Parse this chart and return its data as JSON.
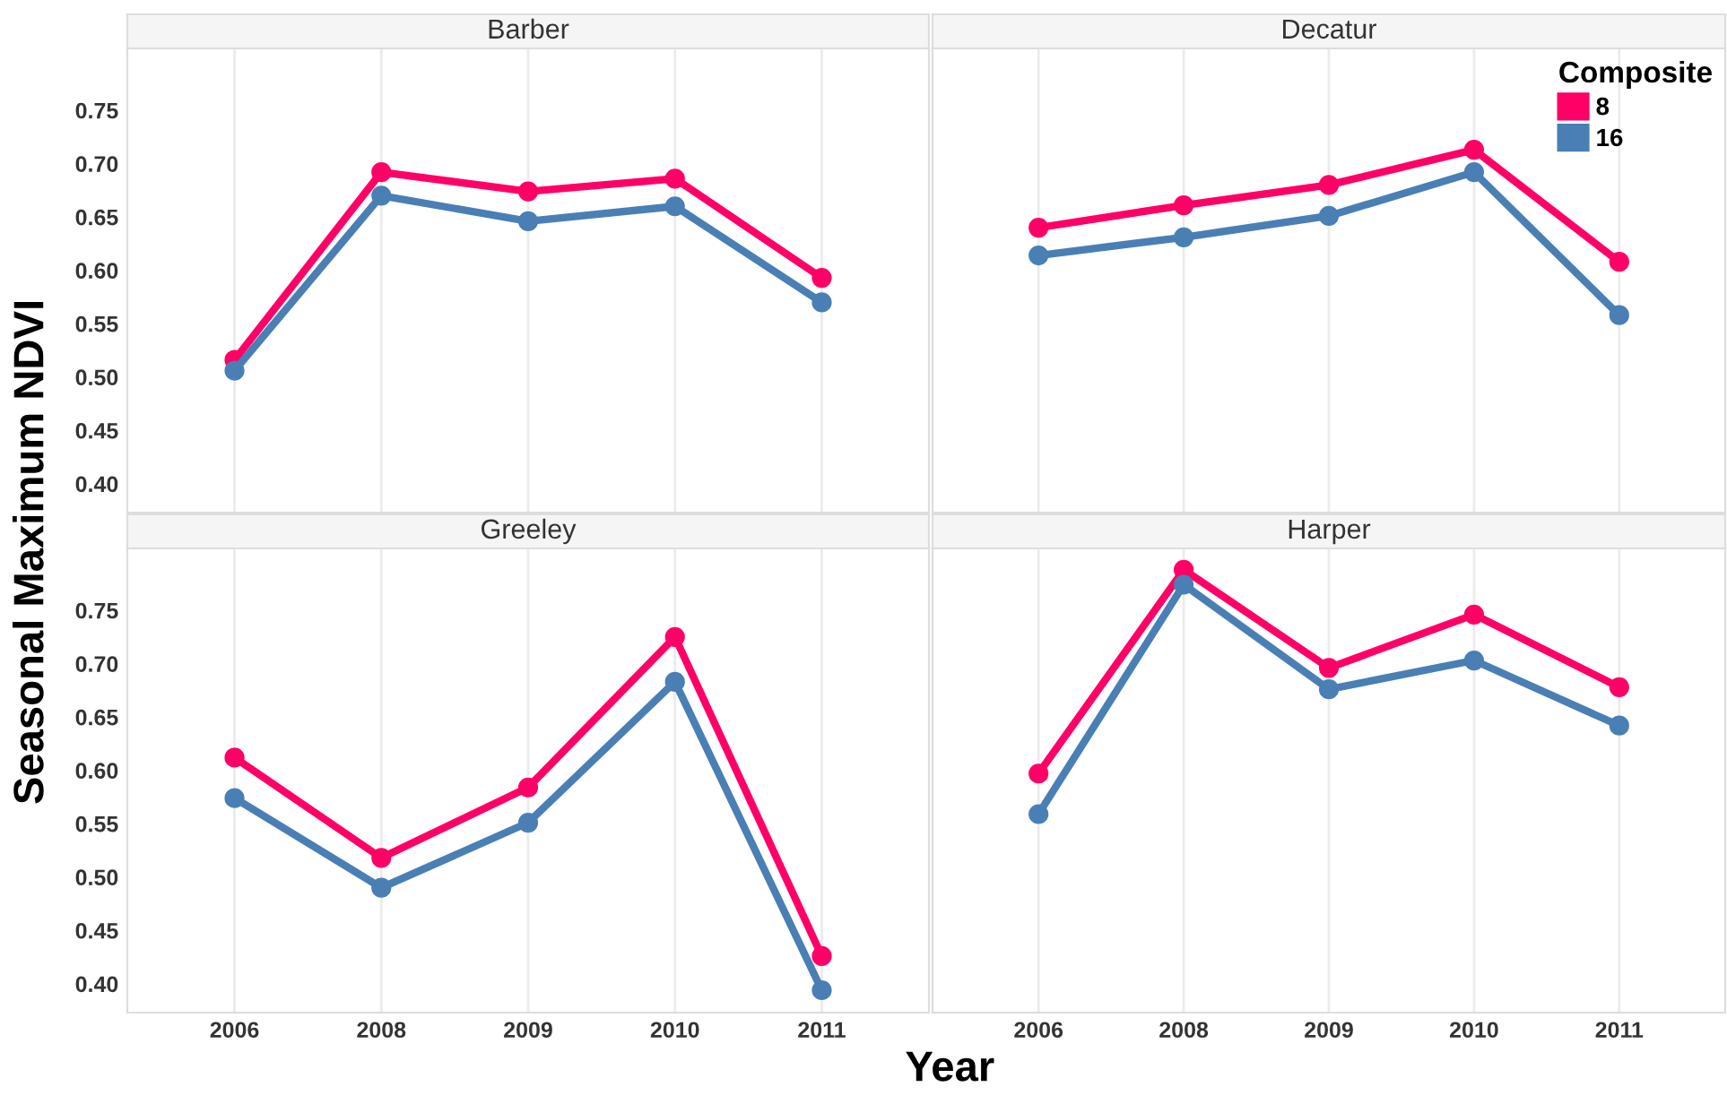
{
  "chart_data": [
    {
      "type": "line",
      "title": "Barber",
      "ylabel": "Seasonal Maximum NDVI",
      "categories": [
        "2006",
        "2008",
        "2009",
        "2010",
        "2011"
      ],
      "ylim": [
        0.373,
        0.808
      ],
      "yticks": [
        {
          "value": 0.4,
          "label": "0.40"
        },
        0.45,
        {
          "value": 0.5,
          "label": "0.50"
        },
        0.55,
        {
          "value": 0.6,
          "label": "0.60"
        },
        0.65,
        {
          "value": 0.7,
          "label": "0.70"
        },
        0.75
      ],
      "tick_labels": "y",
      "grid": "x",
      "marker": "circle",
      "series": [
        {
          "color": "#ff0066",
          "values": [
            0.516,
            0.692,
            0.674,
            0.686,
            0.593
          ]
        },
        {
          "color": "#4a7fb5",
          "values": [
            0.506,
            0.67,
            0.646,
            0.66,
            0.57
          ]
        }
      ]
    },
    {
      "type": "line",
      "title": "Decatur",
      "categories": [
        "2006",
        "2008",
        "2009",
        "2010",
        "2011"
      ],
      "ylim": [
        0.373,
        0.808
      ],
      "tick_labels": false,
      "grid": "x",
      "marker": "circle",
      "legend": "top right",
      "legend_title": "Composite",
      "series": [
        {
          "name": "8",
          "color": "#ff0066",
          "values": [
            0.64,
            0.661,
            0.68,
            0.713,
            0.608
          ]
        },
        {
          "name": "16",
          "color": "#4a7fb5",
          "values": [
            0.614,
            0.631,
            0.651,
            0.692,
            0.558
          ]
        }
      ]
    },
    {
      "type": "line",
      "title": "Greeley",
      "xlabel": "Year",
      "categories": [
        "2006",
        "2008",
        "2009",
        "2010",
        "2011"
      ],
      "ylim": [
        0.373,
        0.808
      ],
      "yticks": [
        {
          "value": 0.4,
          "label": "0.40"
        },
        0.45,
        {
          "value": 0.5,
          "label": "0.50"
        },
        0.55,
        {
          "value": 0.6,
          "label": "0.60"
        },
        0.65,
        {
          "value": 0.7,
          "label": "0.70"
        },
        0.75
      ],
      "grid": "x",
      "marker": "circle",
      "series": [
        {
          "color": "#ff0066",
          "values": [
            0.612,
            0.518,
            0.584,
            0.725,
            0.426
          ]
        },
        {
          "color": "#4a7fb5",
          "values": [
            0.574,
            0.49,
            0.551,
            0.683,
            0.394
          ]
        }
      ]
    },
    {
      "type": "line",
      "title": "Harper",
      "categories": [
        "2006",
        "2008",
        "2009",
        "2010",
        "2011"
      ],
      "ylim": [
        0.373,
        0.808
      ],
      "tick_labels": "x",
      "grid": "x",
      "marker": "circle",
      "series": [
        {
          "color": "#ff0066",
          "values": [
            0.597,
            0.788,
            0.696,
            0.746,
            0.678
          ]
        },
        {
          "color": "#4a7fb5",
          "values": [
            0.559,
            0.774,
            0.676,
            0.703,
            0.642
          ]
        }
      ]
    }
  ]
}
